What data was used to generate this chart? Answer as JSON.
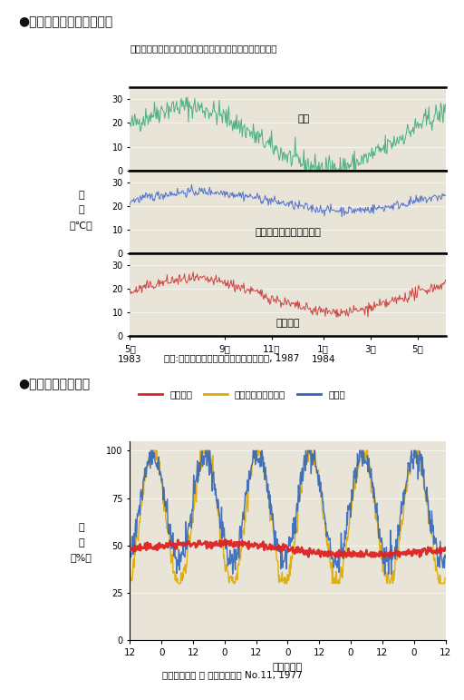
{
  "title1": "●外気温と室内温度の変化",
  "subtitle1": "鉄筋コンクリート造住宅と木造住宅の一年間の気温の変化",
  "ylabel1": "温\n度\n（℃）",
  "source1": "資料:山田正編「木質環境の科学」海青社, 1987",
  "xtick_labels1": [
    "5月\n1983",
    "9月",
    "11月",
    "1月\n1984",
    "3月",
    "5月"
  ],
  "panel1_label": "外気",
  "panel2_label": "鉄筋コンクリート造住宅",
  "panel3_label": "木造住宅",
  "color_gaiki": "#3aaa7a",
  "color_rc": "#4466cc",
  "color_wood": "#cc3333",
  "title2": "●住宅内の湿度変化",
  "ylabel2": "湿\n度\n（%）",
  "source2": "資料：則元京 他 木材研究資料 No.11, 1977",
  "xlabel2": "時刻（時）",
  "xtick_labels2": [
    "12",
    "0",
    "12",
    "0",
    "12",
    "0",
    "12",
    "0",
    "12",
    "0",
    "12"
  ],
  "legend2": [
    "合板内装",
    "ビニールシート内装",
    "百葉箱"
  ],
  "color_goban": "#dd2222",
  "color_vinyl": "#ddaa00",
  "color_hyakuyoubako": "#3366bb",
  "panel_bg": "#e8e4d8"
}
